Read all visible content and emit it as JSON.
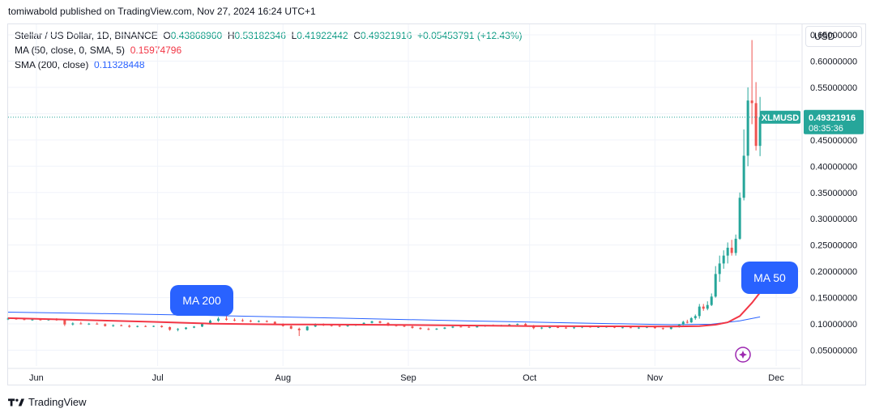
{
  "header": {
    "published": "tomiwabold published on TradingView.com, Nov 27, 2024 16:24 UTC+1"
  },
  "legend": {
    "symbol": "Stellar / US Dollar, 1D, BINANCE",
    "o_label": "O",
    "o": "0.43868960",
    "h_label": "H",
    "h": "0.53182346",
    "l_label": "L",
    "l": "0.41922442",
    "c_label": "C",
    "c": "0.49321916",
    "change": "+0.05453791 (+12.43%)",
    "ma50_label": "MA (50, close, 0, SMA, 5)",
    "ma50_value": "0.15974796",
    "sma200_label": "SMA (200, close)",
    "sma200_value": "0.11328448"
  },
  "currency_button": "USD",
  "price_tag": {
    "symbol": "XLMUSD",
    "price": "0.49321916",
    "countdown": "08:35:36"
  },
  "callouts": {
    "ma200": "MA 200",
    "ma50": "MA 50"
  },
  "footer": {
    "brand": "TradingView"
  },
  "colors": {
    "up": "#26a69a",
    "down": "#ef5350",
    "ma50": "#f23645",
    "sma200": "#2962ff",
    "callout": "#2962ff",
    "grid": "#f0f3fa"
  },
  "chart_data": {
    "type": "candlestick",
    "y_ticks": [
      "0.65000000",
      "0.60000000",
      "0.55000000",
      "0.50000000",
      "0.45000000",
      "0.40000000",
      "0.35000000",
      "0.30000000",
      "0.25000000",
      "0.20000000",
      "0.15000000",
      "0.10000000",
      "0.05000000"
    ],
    "x_ticks": [
      "Jun",
      "Jul",
      "Aug",
      "Sep",
      "Oct",
      "Nov",
      "Dec"
    ],
    "y_axis_side": "right",
    "ylim": [
      0.02,
      0.67
    ],
    "x_start": "2024-05-25",
    "x_end": "2024-12-07",
    "last_price": 0.49321916,
    "grid": true,
    "candles": [
      {
        "d": "2024-05-25",
        "o": 0.1095,
        "h": 0.1125,
        "l": 0.1075,
        "c": 0.1102
      },
      {
        "d": "2024-05-27",
        "o": 0.1102,
        "h": 0.112,
        "l": 0.108,
        "c": 0.109
      },
      {
        "d": "2024-05-29",
        "o": 0.109,
        "h": 0.111,
        "l": 0.107,
        "c": 0.108
      },
      {
        "d": "2024-05-31",
        "o": 0.108,
        "h": 0.11,
        "l": 0.106,
        "c": 0.1085
      },
      {
        "d": "2024-06-02",
        "o": 0.1085,
        "h": 0.1105,
        "l": 0.1065,
        "c": 0.107
      },
      {
        "d": "2024-06-04",
        "o": 0.107,
        "h": 0.11,
        "l": 0.106,
        "c": 0.109
      },
      {
        "d": "2024-06-06",
        "o": 0.109,
        "h": 0.111,
        "l": 0.106,
        "c": 0.107
      },
      {
        "d": "2024-06-08",
        "o": 0.107,
        "h": 0.108,
        "l": 0.096,
        "c": 0.099
      },
      {
        "d": "2024-06-10",
        "o": 0.099,
        "h": 0.103,
        "l": 0.097,
        "c": 0.101
      },
      {
        "d": "2024-06-12",
        "o": 0.101,
        "h": 0.104,
        "l": 0.099,
        "c": 0.1
      },
      {
        "d": "2024-06-14",
        "o": 0.1,
        "h": 0.102,
        "l": 0.098,
        "c": 0.1005
      },
      {
        "d": "2024-06-16",
        "o": 0.1005,
        "h": 0.103,
        "l": 0.099,
        "c": 0.0995
      },
      {
        "d": "2024-06-18",
        "o": 0.0995,
        "h": 0.101,
        "l": 0.095,
        "c": 0.096
      },
      {
        "d": "2024-06-20",
        "o": 0.096,
        "h": 0.099,
        "l": 0.0945,
        "c": 0.0975
      },
      {
        "d": "2024-06-22",
        "o": 0.0975,
        "h": 0.099,
        "l": 0.0955,
        "c": 0.0965
      },
      {
        "d": "2024-06-24",
        "o": 0.0965,
        "h": 0.0985,
        "l": 0.093,
        "c": 0.0945
      },
      {
        "d": "2024-06-26",
        "o": 0.0945,
        "h": 0.097,
        "l": 0.0935,
        "c": 0.096
      },
      {
        "d": "2024-06-28",
        "o": 0.096,
        "h": 0.0975,
        "l": 0.094,
        "c": 0.095
      },
      {
        "d": "2024-06-30",
        "o": 0.095,
        "h": 0.097,
        "l": 0.094,
        "c": 0.0962
      },
      {
        "d": "2024-07-02",
        "o": 0.0962,
        "h": 0.0975,
        "l": 0.093,
        "c": 0.094
      },
      {
        "d": "2024-07-04",
        "o": 0.094,
        "h": 0.095,
        "l": 0.087,
        "c": 0.089
      },
      {
        "d": "2024-07-06",
        "o": 0.089,
        "h": 0.092,
        "l": 0.086,
        "c": 0.0905
      },
      {
        "d": "2024-07-08",
        "o": 0.0905,
        "h": 0.094,
        "l": 0.089,
        "c": 0.093
      },
      {
        "d": "2024-07-10",
        "o": 0.093,
        "h": 0.096,
        "l": 0.092,
        "c": 0.095
      },
      {
        "d": "2024-07-12",
        "o": 0.095,
        "h": 0.101,
        "l": 0.094,
        "c": 0.1
      },
      {
        "d": "2024-07-14",
        "o": 0.1,
        "h": 0.108,
        "l": 0.099,
        "c": 0.106
      },
      {
        "d": "2024-07-16",
        "o": 0.106,
        "h": 0.113,
        "l": 0.104,
        "c": 0.11
      },
      {
        "d": "2024-07-18",
        "o": 0.11,
        "h": 0.115,
        "l": 0.106,
        "c": 0.108
      },
      {
        "d": "2024-07-20",
        "o": 0.108,
        "h": 0.111,
        "l": 0.105,
        "c": 0.107
      },
      {
        "d": "2024-07-22",
        "o": 0.107,
        "h": 0.11,
        "l": 0.104,
        "c": 0.106
      },
      {
        "d": "2024-07-24",
        "o": 0.106,
        "h": 0.108,
        "l": 0.103,
        "c": 0.1045
      },
      {
        "d": "2024-07-26",
        "o": 0.1045,
        "h": 0.107,
        "l": 0.103,
        "c": 0.1055
      },
      {
        "d": "2024-07-28",
        "o": 0.1055,
        "h": 0.107,
        "l": 0.103,
        "c": 0.104
      },
      {
        "d": "2024-07-30",
        "o": 0.104,
        "h": 0.105,
        "l": 0.099,
        "c": 0.1
      },
      {
        "d": "2024-08-01",
        "o": 0.1,
        "h": 0.101,
        "l": 0.095,
        "c": 0.096
      },
      {
        "d": "2024-08-03",
        "o": 0.096,
        "h": 0.097,
        "l": 0.09,
        "c": 0.091
      },
      {
        "d": "2024-08-05",
        "o": 0.091,
        "h": 0.093,
        "l": 0.077,
        "c": 0.088
      },
      {
        "d": "2024-08-07",
        "o": 0.088,
        "h": 0.096,
        "l": 0.087,
        "c": 0.095
      },
      {
        "d": "2024-08-09",
        "o": 0.095,
        "h": 0.101,
        "l": 0.094,
        "c": 0.0995
      },
      {
        "d": "2024-08-11",
        "o": 0.0995,
        "h": 0.101,
        "l": 0.096,
        "c": 0.0975
      },
      {
        "d": "2024-08-13",
        "o": 0.0975,
        "h": 0.099,
        "l": 0.095,
        "c": 0.0965
      },
      {
        "d": "2024-08-15",
        "o": 0.0965,
        "h": 0.098,
        "l": 0.094,
        "c": 0.0955
      },
      {
        "d": "2024-08-17",
        "o": 0.0955,
        "h": 0.098,
        "l": 0.0945,
        "c": 0.097
      },
      {
        "d": "2024-08-19",
        "o": 0.097,
        "h": 0.1,
        "l": 0.096,
        "c": 0.099
      },
      {
        "d": "2024-08-21",
        "o": 0.099,
        "h": 0.103,
        "l": 0.098,
        "c": 0.102
      },
      {
        "d": "2024-08-23",
        "o": 0.102,
        "h": 0.106,
        "l": 0.101,
        "c": 0.105
      },
      {
        "d": "2024-08-25",
        "o": 0.105,
        "h": 0.106,
        "l": 0.101,
        "c": 0.102
      },
      {
        "d": "2024-08-27",
        "o": 0.102,
        "h": 0.103,
        "l": 0.096,
        "c": 0.0975
      },
      {
        "d": "2024-08-29",
        "o": 0.0975,
        "h": 0.099,
        "l": 0.095,
        "c": 0.0965
      },
      {
        "d": "2024-08-31",
        "o": 0.0965,
        "h": 0.098,
        "l": 0.094,
        "c": 0.095
      },
      {
        "d": "2024-09-02",
        "o": 0.095,
        "h": 0.097,
        "l": 0.091,
        "c": 0.0925
      },
      {
        "d": "2024-09-04",
        "o": 0.0925,
        "h": 0.094,
        "l": 0.089,
        "c": 0.0905
      },
      {
        "d": "2024-09-06",
        "o": 0.0905,
        "h": 0.093,
        "l": 0.088,
        "c": 0.0895
      },
      {
        "d": "2024-09-08",
        "o": 0.0895,
        "h": 0.092,
        "l": 0.0885,
        "c": 0.091
      },
      {
        "d": "2024-09-10",
        "o": 0.091,
        "h": 0.094,
        "l": 0.09,
        "c": 0.093
      },
      {
        "d": "2024-09-12",
        "o": 0.093,
        "h": 0.096,
        "l": 0.092,
        "c": 0.095
      },
      {
        "d": "2024-09-14",
        "o": 0.095,
        "h": 0.097,
        "l": 0.0935,
        "c": 0.0945
      },
      {
        "d": "2024-09-16",
        "o": 0.0945,
        "h": 0.096,
        "l": 0.0925,
        "c": 0.0935
      },
      {
        "d": "2024-09-18",
        "o": 0.0935,
        "h": 0.096,
        "l": 0.093,
        "c": 0.0955
      },
      {
        "d": "2024-09-20",
        "o": 0.0955,
        "h": 0.098,
        "l": 0.0945,
        "c": 0.097
      },
      {
        "d": "2024-09-22",
        "o": 0.097,
        "h": 0.099,
        "l": 0.0955,
        "c": 0.0965
      },
      {
        "d": "2024-09-24",
        "o": 0.0965,
        "h": 0.0985,
        "l": 0.095,
        "c": 0.0975
      },
      {
        "d": "2024-09-26",
        "o": 0.0975,
        "h": 0.1,
        "l": 0.096,
        "c": 0.099
      },
      {
        "d": "2024-09-28",
        "o": 0.099,
        "h": 0.101,
        "l": 0.0975,
        "c": 0.1
      },
      {
        "d": "2024-09-30",
        "o": 0.1,
        "h": 0.102,
        "l": 0.096,
        "c": 0.097
      },
      {
        "d": "2024-10-02",
        "o": 0.097,
        "h": 0.098,
        "l": 0.09,
        "c": 0.092
      },
      {
        "d": "2024-10-04",
        "o": 0.092,
        "h": 0.094,
        "l": 0.09,
        "c": 0.093
      },
      {
        "d": "2024-10-06",
        "o": 0.093,
        "h": 0.095,
        "l": 0.0915,
        "c": 0.094
      },
      {
        "d": "2024-10-08",
        "o": 0.094,
        "h": 0.0955,
        "l": 0.092,
        "c": 0.093
      },
      {
        "d": "2024-10-10",
        "o": 0.093,
        "h": 0.0945,
        "l": 0.091,
        "c": 0.092
      },
      {
        "d": "2024-10-12",
        "o": 0.092,
        "h": 0.094,
        "l": 0.0905,
        "c": 0.0935
      },
      {
        "d": "2024-10-14",
        "o": 0.0935,
        "h": 0.096,
        "l": 0.092,
        "c": 0.095
      },
      {
        "d": "2024-10-16",
        "o": 0.095,
        "h": 0.0965,
        "l": 0.093,
        "c": 0.094
      },
      {
        "d": "2024-10-18",
        "o": 0.094,
        "h": 0.0955,
        "l": 0.0925,
        "c": 0.0945
      },
      {
        "d": "2024-10-20",
        "o": 0.0945,
        "h": 0.096,
        "l": 0.093,
        "c": 0.095
      },
      {
        "d": "2024-10-22",
        "o": 0.095,
        "h": 0.096,
        "l": 0.092,
        "c": 0.093
      },
      {
        "d": "2024-10-24",
        "o": 0.093,
        "h": 0.0945,
        "l": 0.0915,
        "c": 0.0935
      },
      {
        "d": "2024-10-26",
        "o": 0.0935,
        "h": 0.095,
        "l": 0.092,
        "c": 0.0925
      },
      {
        "d": "2024-10-28",
        "o": 0.0925,
        "h": 0.094,
        "l": 0.0905,
        "c": 0.093
      },
      {
        "d": "2024-10-30",
        "o": 0.093,
        "h": 0.0955,
        "l": 0.092,
        "c": 0.0945
      },
      {
        "d": "2024-11-01",
        "o": 0.0945,
        "h": 0.096,
        "l": 0.091,
        "c": 0.092
      },
      {
        "d": "2024-11-03",
        "o": 0.092,
        "h": 0.093,
        "l": 0.089,
        "c": 0.0905
      },
      {
        "d": "2024-11-05",
        "o": 0.0905,
        "h": 0.095,
        "l": 0.0895,
        "c": 0.094
      },
      {
        "d": "2024-11-07",
        "o": 0.094,
        "h": 0.1,
        "l": 0.093,
        "c": 0.099
      },
      {
        "d": "2024-11-08",
        "o": 0.099,
        "h": 0.106,
        "l": 0.0975,
        "c": 0.104
      },
      {
        "d": "2024-11-09",
        "o": 0.104,
        "h": 0.108,
        "l": 0.101,
        "c": 0.103
      },
      {
        "d": "2024-11-10",
        "o": 0.103,
        "h": 0.113,
        "l": 0.102,
        "c": 0.111
      },
      {
        "d": "2024-11-11",
        "o": 0.111,
        "h": 0.118,
        "l": 0.108,
        "c": 0.115
      },
      {
        "d": "2024-11-12",
        "o": 0.115,
        "h": 0.138,
        "l": 0.11,
        "c": 0.133
      },
      {
        "d": "2024-11-13",
        "o": 0.133,
        "h": 0.138,
        "l": 0.125,
        "c": 0.129
      },
      {
        "d": "2024-11-14",
        "o": 0.129,
        "h": 0.143,
        "l": 0.126,
        "c": 0.136
      },
      {
        "d": "2024-11-15",
        "o": 0.136,
        "h": 0.158,
        "l": 0.134,
        "c": 0.152
      },
      {
        "d": "2024-11-16",
        "o": 0.152,
        "h": 0.21,
        "l": 0.15,
        "c": 0.195
      },
      {
        "d": "2024-11-17",
        "o": 0.195,
        "h": 0.23,
        "l": 0.18,
        "c": 0.215
      },
      {
        "d": "2024-11-18",
        "o": 0.215,
        "h": 0.24,
        "l": 0.205,
        "c": 0.23
      },
      {
        "d": "2024-11-19",
        "o": 0.23,
        "h": 0.255,
        "l": 0.215,
        "c": 0.245
      },
      {
        "d": "2024-11-20",
        "o": 0.245,
        "h": 0.26,
        "l": 0.23,
        "c": 0.235
      },
      {
        "d": "2024-11-21",
        "o": 0.235,
        "h": 0.27,
        "l": 0.23,
        "c": 0.262
      },
      {
        "d": "2024-11-22",
        "o": 0.262,
        "h": 0.35,
        "l": 0.26,
        "c": 0.34
      },
      {
        "d": "2024-11-23",
        "o": 0.34,
        "h": 0.47,
        "l": 0.335,
        "c": 0.42
      },
      {
        "d": "2024-11-24",
        "o": 0.42,
        "h": 0.55,
        "l": 0.4,
        "c": 0.525
      },
      {
        "d": "2024-11-25",
        "o": 0.525,
        "h": 0.64,
        "l": 0.48,
        "c": 0.52
      },
      {
        "d": "2024-11-26",
        "o": 0.52,
        "h": 0.56,
        "l": 0.43,
        "c": 0.4387
      },
      {
        "d": "2024-11-27",
        "o": 0.4386896,
        "h": 0.53182346,
        "l": 0.41922442,
        "c": 0.49321916
      }
    ],
    "ma50_line": [
      {
        "d": "2024-05-25",
        "v": 0.111
      },
      {
        "d": "2024-06-10",
        "v": 0.108
      },
      {
        "d": "2024-06-30",
        "v": 0.104
      },
      {
        "d": "2024-07-14",
        "v": 0.1005
      },
      {
        "d": "2024-08-01",
        "v": 0.099
      },
      {
        "d": "2024-08-20",
        "v": 0.0985
      },
      {
        "d": "2024-09-10",
        "v": 0.0975
      },
      {
        "d": "2024-10-01",
        "v": 0.096
      },
      {
        "d": "2024-10-20",
        "v": 0.0955
      },
      {
        "d": "2024-11-05",
        "v": 0.095
      },
      {
        "d": "2024-11-12",
        "v": 0.096
      },
      {
        "d": "2024-11-16",
        "v": 0.0985
      },
      {
        "d": "2024-11-19",
        "v": 0.103
      },
      {
        "d": "2024-11-22",
        "v": 0.115
      },
      {
        "d": "2024-11-25",
        "v": 0.14
      },
      {
        "d": "2024-11-27",
        "v": 0.1597
      }
    ],
    "sma200_line": [
      {
        "d": "2024-05-25",
        "v": 0.1225
      },
      {
        "d": "2024-06-15",
        "v": 0.12
      },
      {
        "d": "2024-07-15",
        "v": 0.116
      },
      {
        "d": "2024-08-15",
        "v": 0.111
      },
      {
        "d": "2024-09-15",
        "v": 0.106
      },
      {
        "d": "2024-10-15",
        "v": 0.1015
      },
      {
        "d": "2024-11-05",
        "v": 0.0985
      },
      {
        "d": "2024-11-15",
        "v": 0.0995
      },
      {
        "d": "2024-11-22",
        "v": 0.106
      },
      {
        "d": "2024-11-27",
        "v": 0.1133
      }
    ]
  }
}
